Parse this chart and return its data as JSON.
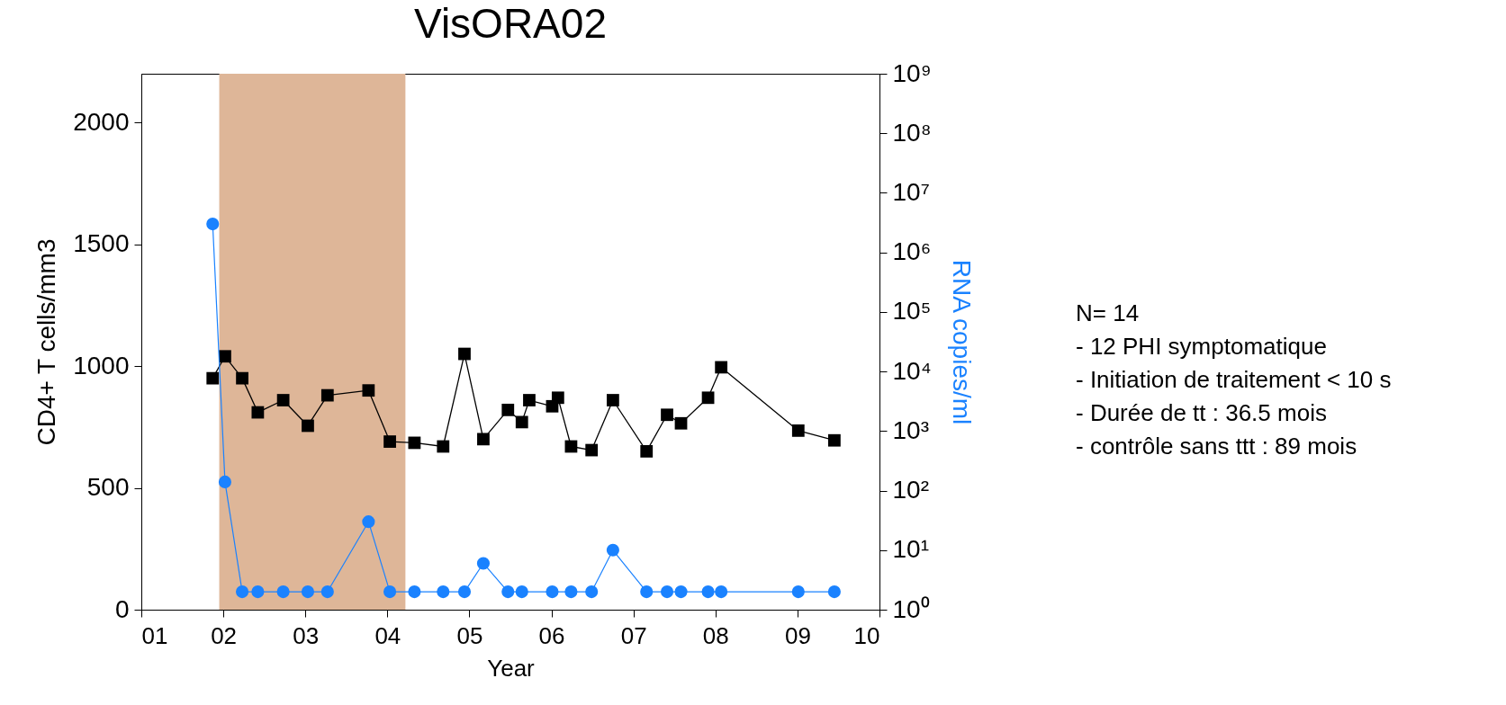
{
  "chart_data": {
    "type": "line",
    "title": "VisORA02",
    "xlabel": "Year",
    "ylabel": "CD4+ T cells/mm3",
    "y2label": "RNA copies/ml",
    "xlim": [
      1,
      10
    ],
    "xticks": [
      {
        "value": 1,
        "label": "01"
      },
      {
        "value": 2,
        "label": "02"
      },
      {
        "value": 3,
        "label": "03"
      },
      {
        "value": 4,
        "label": "04"
      },
      {
        "value": 5,
        "label": "05"
      },
      {
        "value": 6,
        "label": "06"
      },
      {
        "value": 7,
        "label": "07"
      },
      {
        "value": 8,
        "label": "08"
      },
      {
        "value": 9,
        "label": "09"
      },
      10
    ],
    "ylim": [
      0,
      2200
    ],
    "yticks": [
      0,
      500,
      1000,
      1500,
      2000
    ],
    "y2lim": [
      1,
      1000000000
    ],
    "y2ticks": [
      {
        "value": 1,
        "label": "10⁰"
      },
      {
        "value": 10,
        "label": "10¹"
      },
      {
        "value": 100,
        "label": "10²"
      },
      {
        "value": 1000,
        "label": "10³"
      },
      {
        "value": 10000,
        "label": "10⁴"
      },
      {
        "value": 100000,
        "label": "10⁵"
      },
      {
        "value": 1000000,
        "label": "10⁶"
      },
      {
        "value": 10000000,
        "label": "10⁷"
      },
      {
        "value": 100000000,
        "label": "10⁸"
      },
      {
        "value": 1000000000,
        "label": "10⁹"
      }
    ],
    "log": "y2",
    "bands": [
      {
        "axis": "x",
        "from": 1.95,
        "to": 4.22,
        "color": "#deb698"
      }
    ],
    "series": [
      {
        "color": "#000000",
        "marker": "square",
        "x": [
          1.87,
          2.02,
          2.23,
          2.42,
          2.73,
          3.03,
          3.27,
          3.77,
          4.03,
          4.33,
          4.68,
          4.94,
          5.17,
          5.47,
          5.64,
          5.73,
          6.01,
          6.08,
          6.24,
          6.49,
          6.75,
          7.16,
          7.41,
          7.58,
          7.91,
          8.07,
          9.01,
          9.45
        ],
        "values": [
          950,
          1040,
          950,
          810,
          860,
          755,
          880,
          900,
          690,
          685,
          670,
          1050,
          700,
          820,
          770,
          860,
          835,
          870,
          670,
          655,
          860,
          650,
          800,
          765,
          870,
          995,
          735,
          695
        ]
      },
      {
        "color": "#1a82ff",
        "marker": "circle",
        "axis": "y2",
        "x": [
          1.87,
          2.02,
          2.23,
          2.42,
          2.73,
          3.03,
          3.27,
          3.77,
          4.03,
          4.33,
          4.68,
          4.94,
          5.17,
          5.47,
          5.64,
          6.01,
          6.24,
          6.49,
          6.75,
          7.16,
          7.41,
          7.58,
          7.91,
          8.07,
          9.01,
          9.45
        ],
        "values": [
          3000000,
          140,
          2,
          2,
          2,
          2,
          2,
          30,
          2,
          2,
          2,
          2,
          6,
          2,
          2,
          2,
          2,
          2,
          10,
          2,
          2,
          2,
          2,
          2,
          2,
          2
        ]
      }
    ],
    "annotations": [
      "N= 14",
      "- 12 PHI symptomatique",
      "- Initiation de traitement < 10 s",
      "- Durée de tt : 36.5 mois",
      "- contrôle sans ttt : 89 mois"
    ]
  }
}
